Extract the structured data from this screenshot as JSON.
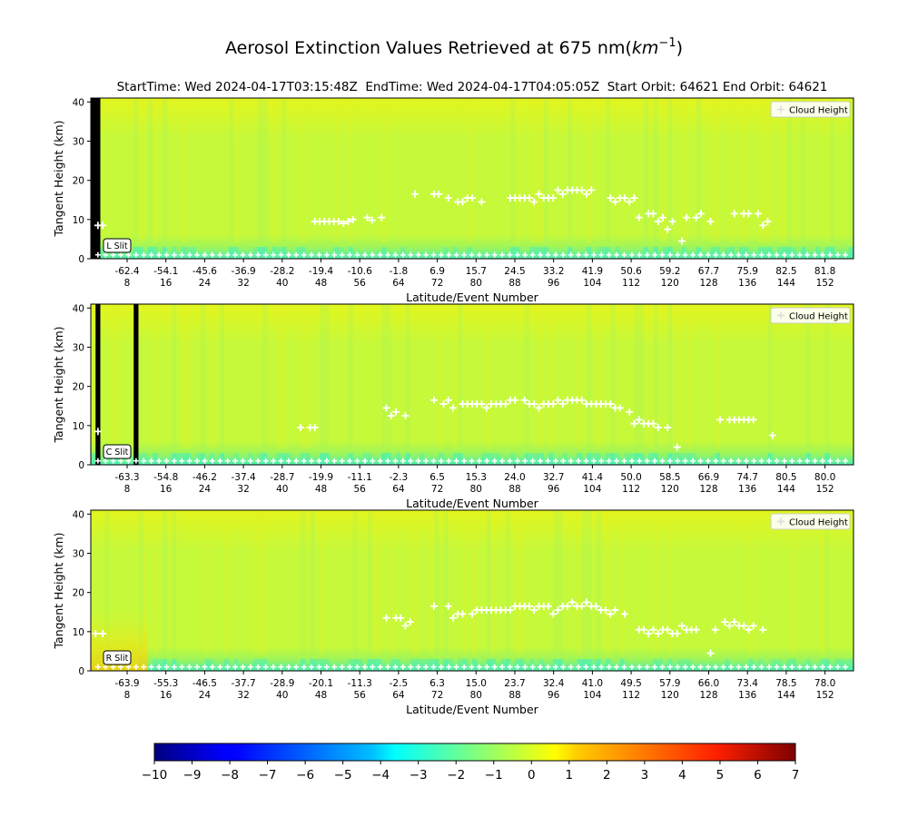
{
  "title": "Aerosol Extinction Values Retrieved at 675 nm(km⁻¹)",
  "title_main": "Aerosol Extinction Values Retrieved at 675 nm(",
  "title_unit": "km",
  "title_exp": "−1",
  "title_close": ")",
  "subtitle": "StartTime: Wed 2024-04-17T03:15:48Z  EndTime: Wed 2024-04-17T04:05:05Z  Start Orbit: 64621 End Orbit: 64621",
  "colors": {
    "field_base": "#c6f93a",
    "field_yellow": "#e2f51e",
    "field_green": "#9ef55a",
    "field_cyan": "#4ff0b0",
    "marker": "#ffffff",
    "gap": "#000000"
  },
  "colorbar": {
    "colormap": "jet",
    "min": -10,
    "max": 7,
    "ticks": [
      "−10",
      "−9",
      "−8",
      "−7",
      "−6",
      "−5",
      "−4",
      "−3",
      "−2",
      "−1",
      "0",
      "1",
      "2",
      "3",
      "4",
      "5",
      "6",
      "7"
    ]
  },
  "chart_data": [
    {
      "type": "heatmap",
      "slit_label": "L Slit",
      "ylabel": "Tangent Height (km)",
      "xlabel": "Latitude/Event Number",
      "ylim": [
        0,
        41
      ],
      "yticks": [
        "0",
        "10",
        "20",
        "30",
        "40"
      ],
      "xlim": [
        0,
        160
      ],
      "lat_ticks": [
        "-62.4",
        "-54.1",
        "-45.6",
        "-36.9",
        "-28.2",
        "-19.4",
        "-10.6",
        "-1.8",
        "6.9",
        "15.7",
        "24.5",
        "33.2",
        "41.9",
        "50.6",
        "59.2",
        "67.7",
        "75.9",
        "82.5",
        "81.8"
      ],
      "event_ticks": [
        "8",
        "16",
        "24",
        "32",
        "40",
        "48",
        "56",
        "64",
        "72",
        "80",
        "88",
        "96",
        "104",
        "112",
        "120",
        "128",
        "136",
        "144",
        "152"
      ],
      "legend": "Cloud Height",
      "cloud_height": [
        [
          1.5,
          8.5
        ],
        [
          2.5,
          8.5
        ],
        [
          47,
          9.5
        ],
        [
          48,
          9.5
        ],
        [
          49,
          9.5
        ],
        [
          50,
          9.5
        ],
        [
          51,
          9.5
        ],
        [
          52,
          9.5
        ],
        [
          53,
          9
        ],
        [
          54,
          9.5
        ],
        [
          55,
          10
        ],
        [
          58,
          10.5
        ],
        [
          59,
          9.8
        ],
        [
          61,
          10.5
        ],
        [
          68,
          16.5
        ],
        [
          72,
          16.5
        ],
        [
          73,
          16.5
        ],
        [
          75,
          15.5
        ],
        [
          77,
          14.5
        ],
        [
          78,
          14.5
        ],
        [
          79,
          15.5
        ],
        [
          80,
          15.5
        ],
        [
          82,
          14.5
        ],
        [
          88,
          15.5
        ],
        [
          89,
          15.5
        ],
        [
          90,
          15.5
        ],
        [
          91,
          15.5
        ],
        [
          92,
          15.5
        ],
        [
          93,
          14.5
        ],
        [
          94,
          16.5
        ],
        [
          95,
          15.5
        ],
        [
          96,
          15.5
        ],
        [
          97,
          15.5
        ],
        [
          98,
          17.5
        ],
        [
          99,
          16.5
        ],
        [
          100,
          17.5
        ],
        [
          101,
          17.5
        ],
        [
          102,
          17.5
        ],
        [
          103,
          17.5
        ],
        [
          104,
          16.5
        ],
        [
          105,
          17.5
        ],
        [
          109,
          15.5
        ],
        [
          110,
          14.5
        ],
        [
          111,
          15.5
        ],
        [
          112,
          15.5
        ],
        [
          113,
          14.5
        ],
        [
          114,
          15.5
        ],
        [
          115,
          10.5
        ],
        [
          117,
          11.5
        ],
        [
          118,
          11.5
        ],
        [
          119,
          9.5
        ],
        [
          120,
          10.5
        ],
        [
          121,
          7.5
        ],
        [
          122,
          9.5
        ],
        [
          124,
          4.5
        ],
        [
          125,
          10.5
        ],
        [
          127,
          10.5
        ],
        [
          128,
          11.5
        ],
        [
          130,
          9.5
        ],
        [
          135,
          11.5
        ],
        [
          137,
          11.5
        ],
        [
          138,
          11.5
        ],
        [
          140,
          11.5
        ],
        [
          141,
          8.5
        ],
        [
          142,
          9.5
        ]
      ],
      "gap_columns": [
        [
          0,
          2
        ]
      ]
    },
    {
      "type": "heatmap",
      "slit_label": "C Slit",
      "ylabel": "Tangent Height (km)",
      "xlabel": "Latitude/Event Number",
      "ylim": [
        0,
        41
      ],
      "yticks": [
        "0",
        "10",
        "20",
        "30",
        "40"
      ],
      "xlim": [
        0,
        160
      ],
      "lat_ticks": [
        "-63.3",
        "-54.8",
        "-46.2",
        "-37.4",
        "-28.7",
        "-19.9",
        "-11.1",
        "-2.3",
        "6.5",
        "15.3",
        "24.0",
        "32.7",
        "41.4",
        "50.0",
        "58.5",
        "66.9",
        "74.7",
        "80.5",
        "80.0"
      ],
      "event_ticks": [
        "8",
        "16",
        "24",
        "32",
        "40",
        "48",
        "56",
        "64",
        "72",
        "80",
        "88",
        "96",
        "104",
        "112",
        "120",
        "128",
        "136",
        "144",
        "152"
      ],
      "legend": "Cloud Height",
      "cloud_height": [
        [
          1.5,
          8.5
        ],
        [
          44,
          9.5
        ],
        [
          46,
          9.5
        ],
        [
          47,
          9.5
        ],
        [
          62,
          14.5
        ],
        [
          63,
          12.5
        ],
        [
          64,
          13.5
        ],
        [
          66,
          12.5
        ],
        [
          72,
          16.5
        ],
        [
          74,
          15.5
        ],
        [
          75,
          16.5
        ],
        [
          76,
          14.5
        ],
        [
          78,
          15.5
        ],
        [
          79,
          15.5
        ],
        [
          80,
          15.5
        ],
        [
          81,
          15.5
        ],
        [
          82,
          15.5
        ],
        [
          83,
          14.5
        ],
        [
          84,
          15.5
        ],
        [
          85,
          15.5
        ],
        [
          86,
          15.5
        ],
        [
          87,
          15.5
        ],
        [
          88,
          16.5
        ],
        [
          89,
          16.5
        ],
        [
          91,
          16.5
        ],
        [
          92,
          15.5
        ],
        [
          93,
          15.5
        ],
        [
          94,
          14.5
        ],
        [
          95,
          15.5
        ],
        [
          96,
          15.5
        ],
        [
          97,
          15.5
        ],
        [
          98,
          16.5
        ],
        [
          99,
          15.5
        ],
        [
          100,
          16.5
        ],
        [
          101,
          16.5
        ],
        [
          102,
          16.5
        ],
        [
          103,
          16.5
        ],
        [
          104,
          15.5
        ],
        [
          105,
          15.5
        ],
        [
          106,
          15.5
        ],
        [
          107,
          15.5
        ],
        [
          108,
          15.5
        ],
        [
          109,
          15.5
        ],
        [
          110,
          14.5
        ],
        [
          111,
          14.5
        ],
        [
          113,
          13.5
        ],
        [
          114,
          10.5
        ],
        [
          115,
          11.5
        ],
        [
          116,
          10.5
        ],
        [
          117,
          10.5
        ],
        [
          118,
          10.5
        ],
        [
          119,
          9.5
        ],
        [
          121,
          9.5
        ],
        [
          123,
          4.5
        ],
        [
          132,
          11.5
        ],
        [
          134,
          11.5
        ],
        [
          135,
          11.5
        ],
        [
          136,
          11.5
        ],
        [
          137,
          11.5
        ],
        [
          138,
          11.5
        ],
        [
          139,
          11.5
        ],
        [
          143,
          7.5
        ]
      ],
      "gap_columns": [
        [
          1,
          2
        ],
        [
          9,
          10
        ]
      ]
    },
    {
      "type": "heatmap",
      "slit_label": "R Slit",
      "ylabel": "Tangent Height (km)",
      "xlabel": "Latitude/Event Number",
      "ylim": [
        0,
        41
      ],
      "yticks": [
        "0",
        "10",
        "20",
        "30",
        "40"
      ],
      "xlim": [
        0,
        160
      ],
      "lat_ticks": [
        "-63.9",
        "-55.3",
        "-46.5",
        "-37.7",
        "-28.9",
        "-20.1",
        "-11.3",
        "-2.5",
        "6.3",
        "15.0",
        "23.7",
        "32.4",
        "41.0",
        "49.5",
        "57.9",
        "66.0",
        "73.4",
        "78.5",
        "78.0"
      ],
      "event_ticks": [
        "8",
        "16",
        "24",
        "32",
        "40",
        "48",
        "56",
        "64",
        "72",
        "80",
        "88",
        "96",
        "104",
        "112",
        "120",
        "128",
        "136",
        "144",
        "152"
      ],
      "legend": "Cloud Height",
      "cloud_height": [
        [
          1,
          9.5
        ],
        [
          2.5,
          9.5
        ],
        [
          62,
          13.5
        ],
        [
          64,
          13.5
        ],
        [
          65,
          13.5
        ],
        [
          66,
          11.5
        ],
        [
          67,
          12.5
        ],
        [
          72,
          16.5
        ],
        [
          75,
          16.5
        ],
        [
          76,
          13.5
        ],
        [
          77,
          14.5
        ],
        [
          78,
          14.5
        ],
        [
          80,
          14.5
        ],
        [
          81,
          15.5
        ],
        [
          82,
          15.5
        ],
        [
          83,
          15.5
        ],
        [
          84,
          15.5
        ],
        [
          85,
          15.5
        ],
        [
          86,
          15.5
        ],
        [
          87,
          15.5
        ],
        [
          88,
          15.5
        ],
        [
          89,
          16.5
        ],
        [
          90,
          16.5
        ],
        [
          91,
          16.5
        ],
        [
          92,
          16.5
        ],
        [
          93,
          15.5
        ],
        [
          94,
          16.5
        ],
        [
          95,
          16.5
        ],
        [
          96,
          16.5
        ],
        [
          97,
          14.5
        ],
        [
          98,
          15.5
        ],
        [
          99,
          16.5
        ],
        [
          100,
          16.5
        ],
        [
          101,
          17.5
        ],
        [
          102,
          16.5
        ],
        [
          103,
          16.5
        ],
        [
          104,
          17.5
        ],
        [
          105,
          16.5
        ],
        [
          106,
          16.5
        ],
        [
          107,
          15.5
        ],
        [
          108,
          15.5
        ],
        [
          109,
          14.5
        ],
        [
          110,
          15.5
        ],
        [
          112,
          14.5
        ],
        [
          115,
          10.5
        ],
        [
          116,
          10.5
        ],
        [
          117,
          9.5
        ],
        [
          118,
          10.5
        ],
        [
          119,
          9.5
        ],
        [
          120,
          10.5
        ],
        [
          121,
          10.5
        ],
        [
          122,
          9.5
        ],
        [
          123,
          9.5
        ],
        [
          124,
          11.5
        ],
        [
          125,
          10.5
        ],
        [
          126,
          10.5
        ],
        [
          127,
          10.5
        ],
        [
          130,
          4.5
        ],
        [
          131,
          10.5
        ],
        [
          133,
          12.5
        ],
        [
          134,
          11.5
        ],
        [
          135,
          12.5
        ],
        [
          136,
          11.5
        ],
        [
          137,
          11.5
        ],
        [
          138,
          10.5
        ],
        [
          139,
          11.5
        ],
        [
          141,
          10.5
        ]
      ],
      "gap_columns": []
    }
  ]
}
